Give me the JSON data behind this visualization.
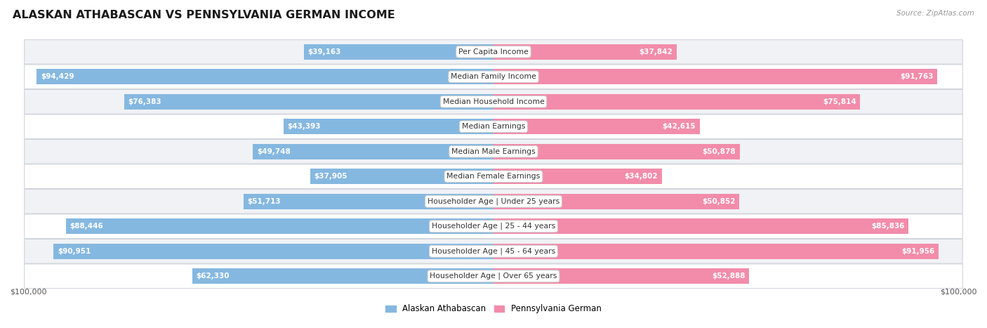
{
  "title": "ALASKAN ATHABASCAN VS PENNSYLVANIA GERMAN INCOME",
  "source": "Source: ZipAtlas.com",
  "categories": [
    "Per Capita Income",
    "Median Family Income",
    "Median Household Income",
    "Median Earnings",
    "Median Male Earnings",
    "Median Female Earnings",
    "Householder Age | Under 25 years",
    "Householder Age | 25 - 44 years",
    "Householder Age | 45 - 64 years",
    "Householder Age | Over 65 years"
  ],
  "alaskan_values": [
    39163,
    94429,
    76383,
    43393,
    49748,
    37905,
    51713,
    88446,
    90951,
    62330
  ],
  "pennsylvania_values": [
    37842,
    91763,
    75814,
    42615,
    50878,
    34802,
    50852,
    85836,
    91956,
    52888
  ],
  "alaskan_labels": [
    "$39,163",
    "$94,429",
    "$76,383",
    "$43,393",
    "$49,748",
    "$37,905",
    "$51,713",
    "$88,446",
    "$90,951",
    "$62,330"
  ],
  "pennsylvania_labels": [
    "$37,842",
    "$91,763",
    "$75,814",
    "$42,615",
    "$50,878",
    "$34,802",
    "$50,852",
    "$85,836",
    "$91,956",
    "$52,888"
  ],
  "max_value": 100000,
  "alaskan_color": "#85b8e0",
  "pennsylvania_color": "#f28caa",
  "background_color": "#ffffff",
  "row_bg_even": "#f0f2f5",
  "row_bg_odd": "#ffffff",
  "bar_height": 0.62,
  "legend_alaskan": "Alaskan Athabascan",
  "legend_pennsylvania": "Pennsylvania German",
  "xlabel_left": "$100,000",
  "xlabel_right": "$100,000",
  "inside_label_threshold": 25000
}
